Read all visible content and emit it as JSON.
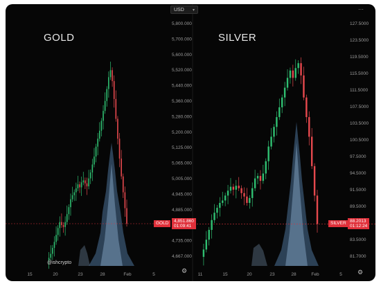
{
  "currency_selector": "USD",
  "top_menu_icon": "more-dots-icon",
  "settings_icon": "gear-icon",
  "watermark": "@ishcrypto",
  "chart_data": [
    {
      "type": "candlestick",
      "title": "GOLD",
      "x_tick_labels": [
        "15",
        "20",
        "23",
        "28",
        "Feb",
        "5"
      ],
      "y_tick_labels": [
        "5,800.000",
        "5,700.000",
        "5,600.000",
        "5,520.000",
        "5,440.000",
        "5,360.000",
        "5,280.000",
        "5,200.000",
        "5,125.000",
        "5,065.000",
        "5,005.000",
        "4,945.000",
        "4,885.000",
        "4,795.000",
        "4,735.000",
        "4,667.000"
      ],
      "ylim": [
        4660,
        5860
      ],
      "last_price_label": "GOLD",
      "last_price": "4,851.860",
      "countdown": "01:09:41",
      "series": [
        {
          "values": [
            4668,
            4680,
            4700,
            4730,
            4760,
            4795,
            4830,
            4860,
            4845,
            4835,
            4860,
            4900,
            4935,
            4975,
            4995,
            5010,
            5030,
            5050,
            5035,
            5060,
            5070,
            5055,
            5040,
            5080,
            5110,
            5150,
            5190,
            5240,
            5280,
            5320,
            5370,
            5420,
            5470,
            5530,
            5590,
            5625,
            5570,
            5480,
            5380,
            5280,
            5180,
            5090,
            5010,
            4930,
            4851.86
          ]
        }
      ]
    },
    {
      "type": "candlestick",
      "title": "SILVER",
      "x_tick_labels": [
        "11",
        "15",
        "20",
        "23",
        "28",
        "Feb",
        "5"
      ],
      "y_tick_labels": [
        "127.5000",
        "123.5000",
        "119.5000",
        "115.5000",
        "111.5000",
        "107.5000",
        "103.5000",
        "100.5000",
        "97.5000",
        "94.5000",
        "91.5000",
        "89.5000",
        "85.5000",
        "83.5000",
        "81.7000"
      ],
      "ylim": [
        80.5,
        129.5
      ],
      "last_price_label": "SILVER",
      "last_price": "88.2013",
      "countdown": "01:12:24",
      "series": [
        {
          "values": [
            81.5,
            83,
            85,
            87,
            89,
            90.5,
            91.5,
            92.5,
            93,
            94,
            95,
            95.8,
            95.2,
            96,
            95.5,
            94.5,
            93.8,
            92.5,
            93.5,
            95.5,
            97.5,
            98,
            97,
            98.5,
            101,
            104,
            106,
            108,
            110,
            112,
            114,
            116,
            118,
            119.5,
            118,
            120,
            121,
            118.5,
            114,
            110,
            106,
            100,
            94,
            88.2013
          ]
        }
      ]
    }
  ]
}
